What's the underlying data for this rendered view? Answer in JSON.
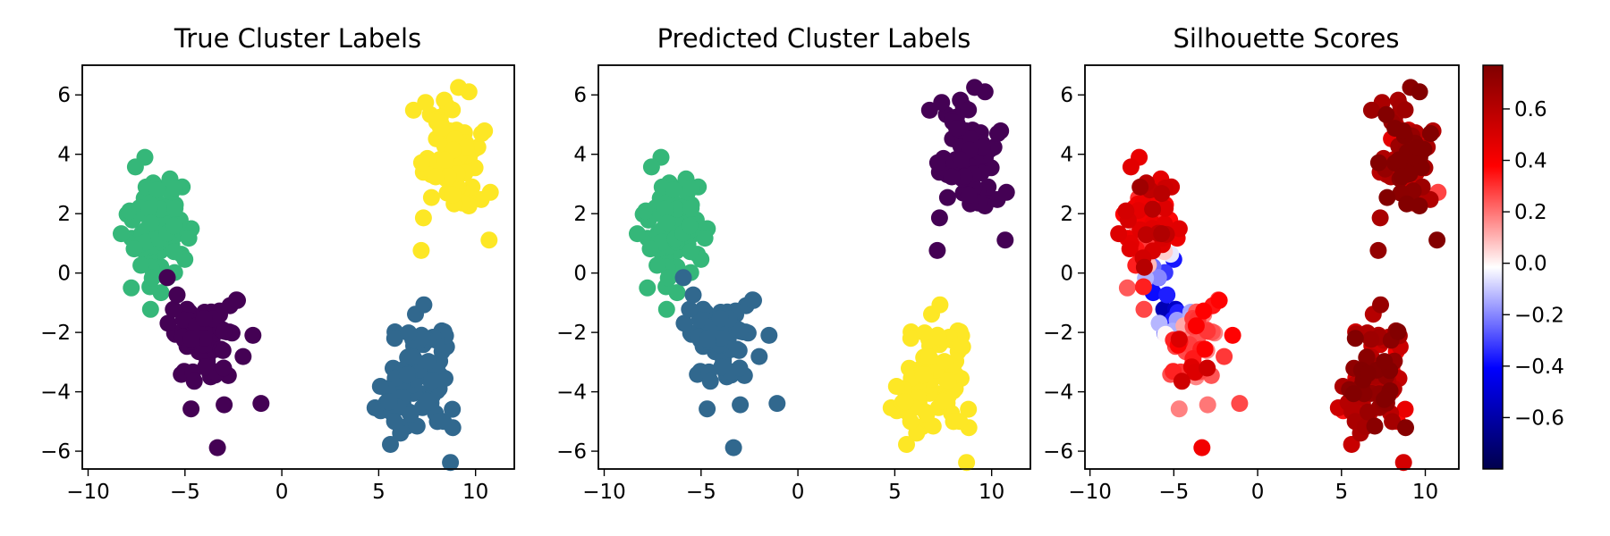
{
  "chart_data": [
    {
      "type": "scatter",
      "title": "True Cluster Labels",
      "xlim": [
        -10.3,
        12.0
      ],
      "ylim": [
        -6.6,
        7.0
      ],
      "xticks": [
        -10,
        -5,
        0,
        5,
        10
      ],
      "xtick_labels": [
        "−10",
        "−5",
        "0",
        "5",
        "10"
      ],
      "yticks": [
        -6,
        -4,
        -2,
        0,
        2,
        4,
        6
      ],
      "ytick_labels": [
        "−6",
        "−4",
        "−2",
        "0",
        "2",
        "4",
        "6"
      ],
      "color_by": "label",
      "grid": false
    },
    {
      "type": "scatter",
      "title": "Predicted Cluster Labels",
      "xlim": [
        -10.3,
        12.0
      ],
      "ylim": [
        -6.6,
        7.0
      ],
      "xticks": [
        -10,
        -5,
        0,
        5,
        10
      ],
      "xtick_labels": [
        "−10",
        "−5",
        "0",
        "5",
        "10"
      ],
      "yticks": [
        -6,
        -4,
        -2,
        0,
        2,
        4,
        6
      ],
      "ytick_labels": [
        "−6",
        "−4",
        "−2",
        "0",
        "2",
        "4",
        "6"
      ],
      "color_by": "label",
      "grid": false
    },
    {
      "type": "scatter",
      "title": "Silhouette Scores",
      "xlim": [
        -10.3,
        12.0
      ],
      "ylim": [
        -6.6,
        7.0
      ],
      "xticks": [
        -10,
        -5,
        0,
        5,
        10
      ],
      "xtick_labels": [
        "−10",
        "−5",
        "0",
        "5",
        "10"
      ],
      "yticks": [
        -6,
        -4,
        -2,
        0,
        2,
        4,
        6
      ],
      "ytick_labels": [
        "−6",
        "−4",
        "−2",
        "0",
        "2",
        "4",
        "6"
      ],
      "color_by": "silhouette_score",
      "grid": false,
      "colorbar": {
        "colormap": "seismic",
        "range": [
          -0.8,
          0.77
        ],
        "ticks": [
          -0.6,
          -0.4,
          -0.2,
          0.0,
          0.2,
          0.4,
          0.6
        ],
        "tick_labels": [
          "−0.6",
          "−0.4",
          "−0.2",
          "0.0",
          "0.2",
          "0.4",
          "0.6"
        ]
      }
    }
  ],
  "clusters": [
    {
      "id": "A",
      "center": [
        -6.5,
        1.4
      ],
      "spread": [
        0.9,
        1.0
      ],
      "n": 80,
      "true_label_color": "#35b779",
      "pred_label_color": "#35b779",
      "score_mean": 0.42
    },
    {
      "id": "B",
      "center": [
        -3.8,
        -2.4
      ],
      "spread": [
        1.0,
        1.0
      ],
      "n": 70,
      "true_label_color": "#440154",
      "pred_label_color": "#31688e",
      "score_mean": 0.28
    },
    {
      "id": "C",
      "center": [
        8.9,
        3.8
      ],
      "spread": [
        0.8,
        1.05
      ],
      "n": 90,
      "true_label_color": "#fde725",
      "pred_label_color": "#440154",
      "score_mean": 0.68
    },
    {
      "id": "D",
      "center": [
        7.1,
        -3.6
      ],
      "spread": [
        0.9,
        1.05
      ],
      "n": 90,
      "true_label_color": "#31688e",
      "pred_label_color": "#fde725",
      "score_mean": 0.62
    }
  ]
}
